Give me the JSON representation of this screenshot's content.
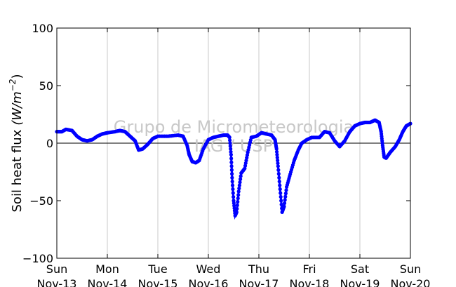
{
  "chart_data": {
    "type": "line",
    "ylabel": "Soil heat flux",
    "ylabel_unit": "(W/m",
    "ylabel_exponent": "−2",
    "ylabel_close": ")",
    "ylim": [
      -100,
      100
    ],
    "yticks": [
      {
        "value": 100,
        "label": "100"
      },
      {
        "value": 50,
        "label": "50"
      },
      {
        "value": 0,
        "label": "0"
      },
      {
        "value": -50,
        "label": "−50"
      },
      {
        "value": -100,
        "label": "−100"
      }
    ],
    "xlim": [
      0,
      7
    ],
    "xticks": [
      {
        "value": 0,
        "day": "Sun",
        "date": "Nov-13"
      },
      {
        "value": 1,
        "day": "Mon",
        "date": "Nov-14"
      },
      {
        "value": 2,
        "day": "Tue",
        "date": "Nov-15"
      },
      {
        "value": 3,
        "day": "Wed",
        "date": "Nov-16"
      },
      {
        "value": 4,
        "day": "Thu",
        "date": "Nov-17"
      },
      {
        "value": 5,
        "day": "Fri",
        "date": "Nov-18"
      },
      {
        "value": 6,
        "day": "Sat",
        "date": "Nov-19"
      },
      {
        "value": 7,
        "day": "Sun",
        "date": "Nov-20"
      }
    ],
    "grid": "vertical",
    "zero_line": true,
    "watermark": [
      "Grupo de Micrometeorologia",
      "IAG / USP"
    ],
    "series_color": "#0000ff",
    "series": [
      {
        "points": [
          [
            0.0,
            10
          ],
          [
            0.1,
            10
          ],
          [
            0.18,
            12
          ],
          [
            0.3,
            11
          ],
          [
            0.4,
            6
          ],
          [
            0.5,
            3
          ],
          [
            0.6,
            2
          ],
          [
            0.7,
            3
          ],
          [
            0.8,
            6
          ],
          [
            0.9,
            8
          ],
          [
            1.0,
            9
          ],
          [
            1.15,
            10
          ],
          [
            1.25,
            11
          ],
          [
            1.35,
            10
          ],
          [
            1.45,
            6
          ],
          [
            1.55,
            2
          ],
          [
            1.62,
            -6
          ],
          [
            1.7,
            -5
          ],
          [
            1.8,
            -1
          ],
          [
            1.9,
            4
          ],
          [
            2.0,
            6
          ],
          [
            2.2,
            6
          ],
          [
            2.4,
            7
          ],
          [
            2.5,
            6
          ],
          [
            2.58,
            -2
          ],
          [
            2.62,
            -10
          ],
          [
            2.68,
            -16
          ],
          [
            2.75,
            -17
          ],
          [
            2.82,
            -15
          ],
          [
            2.9,
            -5
          ],
          [
            3.0,
            3
          ],
          [
            3.1,
            5
          ],
          [
            3.2,
            6
          ],
          [
            3.3,
            7
          ],
          [
            3.38,
            7
          ],
          [
            3.42,
            5
          ],
          [
            3.45,
            -10
          ],
          [
            3.47,
            -30
          ],
          [
            3.5,
            -50
          ],
          [
            3.53,
            -63
          ],
          [
            3.56,
            -60
          ],
          [
            3.6,
            -42
          ],
          [
            3.65,
            -26
          ],
          [
            3.72,
            -22
          ],
          [
            3.78,
            -8
          ],
          [
            3.85,
            5
          ],
          [
            3.95,
            6
          ],
          [
            4.05,
            9
          ],
          [
            4.15,
            8
          ],
          [
            4.25,
            7
          ],
          [
            4.32,
            3
          ],
          [
            4.35,
            -5
          ],
          [
            4.38,
            -20
          ],
          [
            4.42,
            -40
          ],
          [
            4.46,
            -60
          ],
          [
            4.5,
            -55
          ],
          [
            4.55,
            -38
          ],
          [
            4.62,
            -27
          ],
          [
            4.7,
            -15
          ],
          [
            4.78,
            -6
          ],
          [
            4.85,
            0
          ],
          [
            4.95,
            3
          ],
          [
            5.05,
            5
          ],
          [
            5.2,
            5
          ],
          [
            5.3,
            10
          ],
          [
            5.4,
            9
          ],
          [
            5.5,
            2
          ],
          [
            5.6,
            -3
          ],
          [
            5.7,
            2
          ],
          [
            5.8,
            10
          ],
          [
            5.9,
            15
          ],
          [
            6.0,
            17
          ],
          [
            6.1,
            18
          ],
          [
            6.2,
            18
          ],
          [
            6.3,
            20
          ],
          [
            6.38,
            18
          ],
          [
            6.42,
            10
          ],
          [
            6.45,
            -2
          ],
          [
            6.48,
            -12
          ],
          [
            6.52,
            -13
          ],
          [
            6.6,
            -8
          ],
          [
            6.7,
            -3
          ],
          [
            6.78,
            3
          ],
          [
            6.85,
            10
          ],
          [
            6.92,
            15
          ],
          [
            7.0,
            17
          ]
        ]
      }
    ]
  }
}
